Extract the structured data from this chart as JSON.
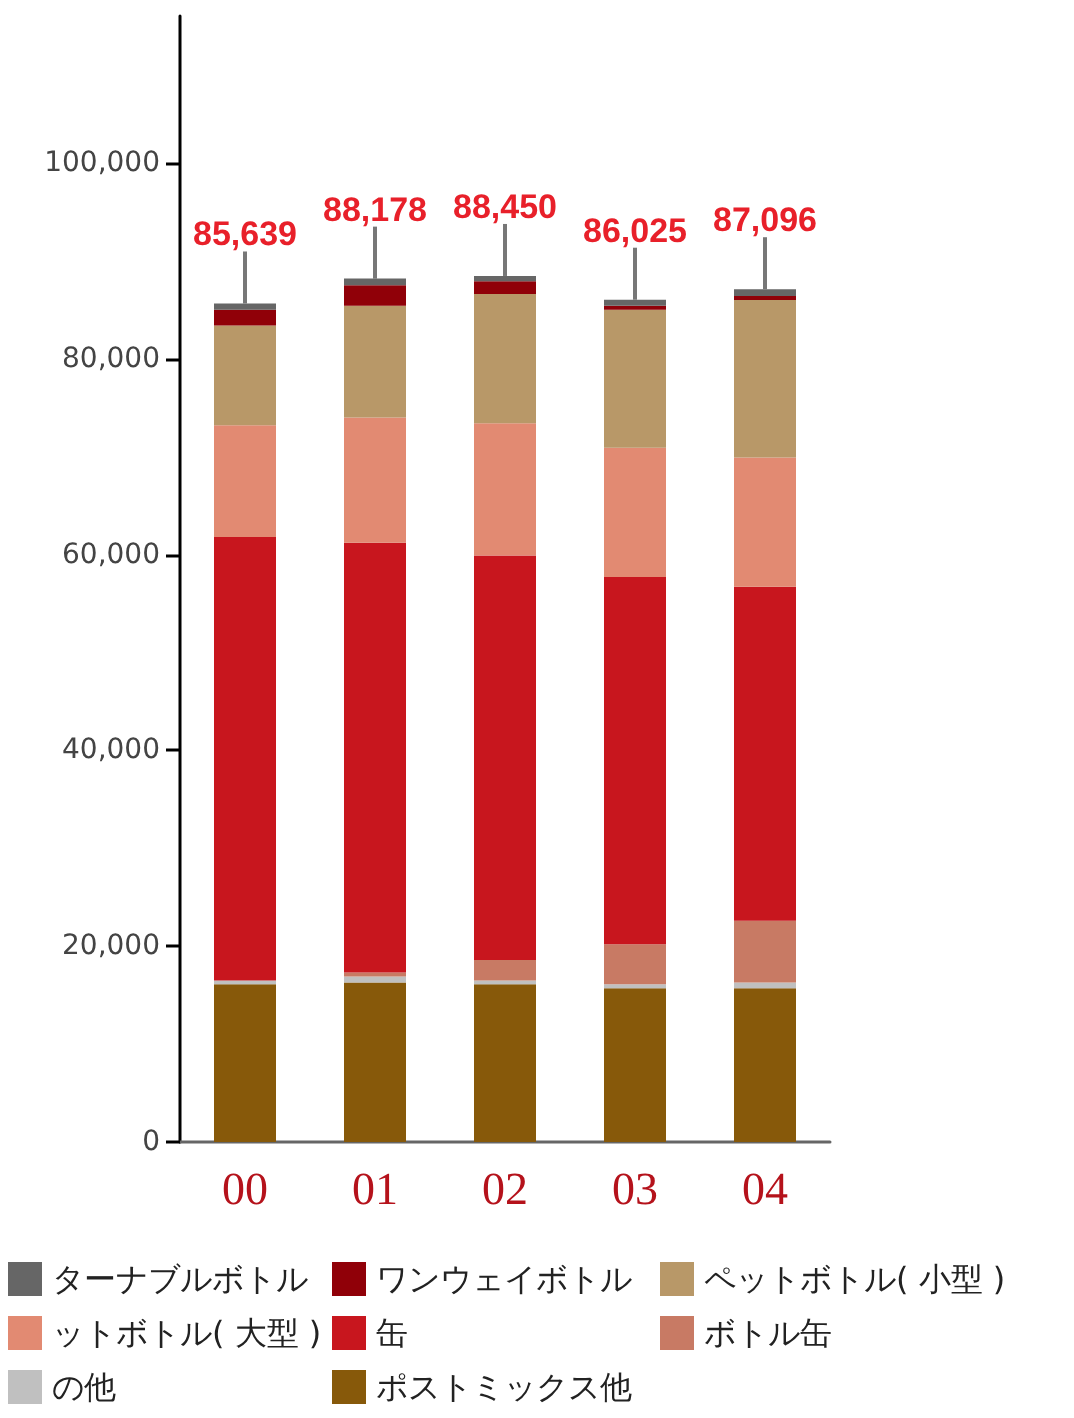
{
  "chart_data": {
    "type": "bar",
    "stacked": true,
    "categories": [
      "00",
      "01",
      "02",
      "03",
      "04"
    ],
    "series": [
      {
        "name": "ポストミックス他",
        "color": "#87590a",
        "values": [
          16100,
          16300,
          16100,
          15700,
          15700
        ]
      },
      {
        "name": "の他",
        "color": "#c0c0c0",
        "values": [
          400,
          600,
          400,
          400,
          600
        ]
      },
      {
        "name": "ボトル缶",
        "color": "#c87a64",
        "values": [
          0,
          400,
          2100,
          4100,
          6300
        ]
      },
      {
        "name": "缶",
        "color": "#c8161e",
        "values": [
          45300,
          43900,
          41300,
          37500,
          34100
        ]
      },
      {
        "name": "ットボトル( 大型 )",
        "color": "#e28a72",
        "values": [
          11400,
          12800,
          13500,
          13200,
          13200
        ]
      },
      {
        "name": "ペットボトル( 小型 )",
        "color": "#b89868",
        "values": [
          10200,
          11400,
          13200,
          14100,
          16100
        ]
      },
      {
        "name": "ワンウェイボトル",
        "color": "#900008",
        "values": [
          1600,
          2100,
          1300,
          400,
          400
        ]
      },
      {
        "name": "ターナブルボトル",
        "color": "#666666",
        "values": [
          639,
          678,
          550,
          625,
          696
        ]
      }
    ],
    "totals": [
      "85,639",
      "88,178",
      "88,450",
      "86,025",
      "87,096"
    ],
    "ylim": [
      0,
      115000
    ],
    "yticks": [
      0,
      {
        "value": 20000,
        "label": "20,000"
      },
      {
        "value": 40000,
        "label": "40,000"
      },
      {
        "value": 60000,
        "label": "60,000"
      },
      {
        "value": 80000,
        "label": "80,000"
      },
      {
        "value": 100000,
        "label": "100,000"
      }
    ],
    "legend": "bottom"
  }
}
